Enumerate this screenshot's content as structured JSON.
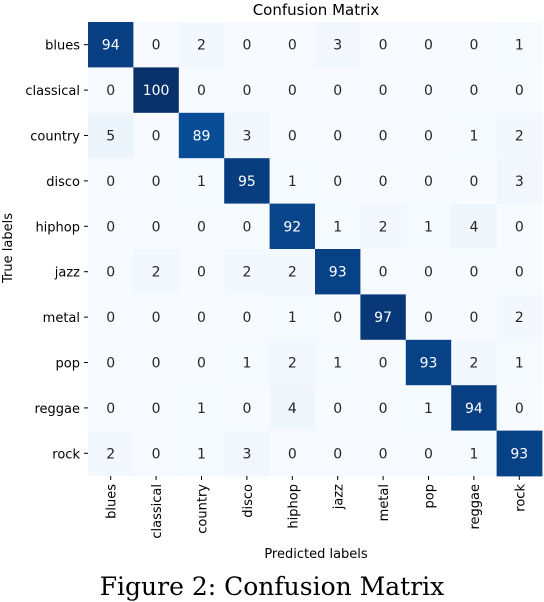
{
  "chart_data": {
    "type": "heatmap",
    "title": "Confusion Matrix",
    "xlabel": "Predicted labels",
    "ylabel": "True labels",
    "x_categories": [
      "blues",
      "classical",
      "country",
      "disco",
      "hiphop",
      "jazz",
      "metal",
      "pop",
      "reggae",
      "rock"
    ],
    "y_categories": [
      "blues",
      "classical",
      "country",
      "disco",
      "hiphop",
      "jazz",
      "metal",
      "pop",
      "reggae",
      "rock"
    ],
    "values": [
      [
        94,
        0,
        2,
        0,
        0,
        3,
        0,
        0,
        0,
        1
      ],
      [
        0,
        100,
        0,
        0,
        0,
        0,
        0,
        0,
        0,
        0
      ],
      [
        5,
        0,
        89,
        3,
        0,
        0,
        0,
        0,
        1,
        2
      ],
      [
        0,
        0,
        1,
        95,
        1,
        0,
        0,
        0,
        0,
        3
      ],
      [
        0,
        0,
        0,
        0,
        92,
        1,
        2,
        1,
        4,
        0
      ],
      [
        0,
        2,
        0,
        2,
        2,
        93,
        0,
        0,
        0,
        0
      ],
      [
        0,
        0,
        0,
        0,
        1,
        0,
        97,
        0,
        0,
        2
      ],
      [
        0,
        0,
        0,
        1,
        2,
        1,
        0,
        93,
        2,
        1
      ],
      [
        0,
        0,
        1,
        0,
        4,
        0,
        0,
        1,
        94,
        0
      ],
      [
        2,
        0,
        1,
        3,
        0,
        0,
        0,
        0,
        1,
        93
      ]
    ],
    "colormap": "Blues",
    "value_range": [
      0,
      100
    ],
    "colorbar": false,
    "annotations": true
  },
  "caption": "Figure 2: Confusion Matrix"
}
